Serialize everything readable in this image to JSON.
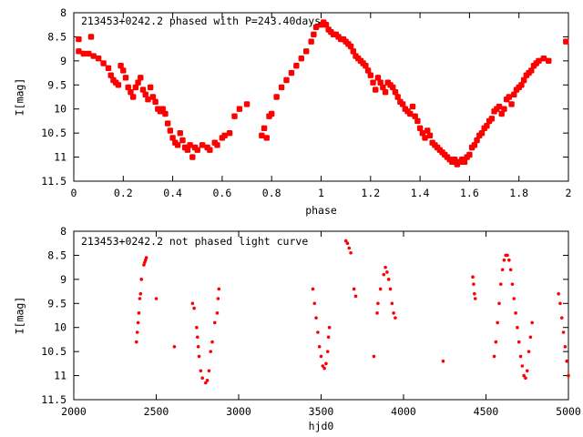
{
  "chart_data": [
    {
      "type": "scatter",
      "title": "213453+0242.2 phased with P=243.40days",
      "xlabel": "phase",
      "ylabel": "I[mag]",
      "xlim": [
        0,
        2
      ],
      "ylim": [
        11.5,
        8
      ],
      "y_inverted": true,
      "x_ticks": [
        "0",
        "0.2",
        "0.4",
        "0.6",
        "0.8",
        "1",
        "1.2",
        "1.4",
        "1.6",
        "1.8",
        "2"
      ],
      "y_ticks": [
        "8",
        "8.5",
        "9",
        "9.5",
        "10",
        "10.5",
        "11",
        "11.5"
      ],
      "marker": "filled-star",
      "marker_color": "#ff0000",
      "points": [
        [
          0.02,
          8.55
        ],
        [
          0.02,
          8.8
        ],
        [
          0.04,
          8.85
        ],
        [
          0.06,
          8.85
        ],
        [
          0.07,
          8.5
        ],
        [
          0.08,
          8.9
        ],
        [
          0.1,
          8.95
        ],
        [
          0.12,
          9.05
        ],
        [
          0.14,
          9.15
        ],
        [
          0.15,
          9.3
        ],
        [
          0.16,
          9.4
        ],
        [
          0.17,
          9.45
        ],
        [
          0.18,
          9.5
        ],
        [
          0.19,
          9.1
        ],
        [
          0.2,
          9.2
        ],
        [
          0.21,
          9.35
        ],
        [
          0.22,
          9.55
        ],
        [
          0.23,
          9.65
        ],
        [
          0.24,
          9.75
        ],
        [
          0.25,
          9.55
        ],
        [
          0.26,
          9.45
        ],
        [
          0.27,
          9.35
        ],
        [
          0.28,
          9.6
        ],
        [
          0.29,
          9.7
        ],
        [
          0.3,
          9.8
        ],
        [
          0.31,
          9.55
        ],
        [
          0.32,
          9.75
        ],
        [
          0.33,
          9.85
        ],
        [
          0.34,
          10.0
        ],
        [
          0.35,
          10.05
        ],
        [
          0.36,
          10.0
        ],
        [
          0.37,
          10.1
        ],
        [
          0.38,
          10.3
        ],
        [
          0.39,
          10.45
        ],
        [
          0.4,
          10.6
        ],
        [
          0.41,
          10.7
        ],
        [
          0.42,
          10.75
        ],
        [
          0.43,
          10.5
        ],
        [
          0.44,
          10.65
        ],
        [
          0.45,
          10.8
        ],
        [
          0.46,
          10.85
        ],
        [
          0.47,
          10.75
        ],
        [
          0.48,
          11.0
        ],
        [
          0.49,
          10.8
        ],
        [
          0.5,
          10.85
        ],
        [
          0.52,
          10.75
        ],
        [
          0.54,
          10.8
        ],
        [
          0.55,
          10.85
        ],
        [
          0.57,
          10.7
        ],
        [
          0.58,
          10.75
        ],
        [
          0.6,
          10.6
        ],
        [
          0.61,
          10.55
        ],
        [
          0.63,
          10.5
        ],
        [
          0.65,
          10.15
        ],
        [
          0.67,
          10.0
        ],
        [
          0.7,
          9.9
        ],
        [
          0.76,
          10.55
        ],
        [
          0.77,
          10.4
        ],
        [
          0.78,
          10.6
        ],
        [
          0.79,
          10.15
        ],
        [
          0.8,
          10.1
        ],
        [
          0.82,
          9.75
        ],
        [
          0.84,
          9.55
        ],
        [
          0.86,
          9.4
        ],
        [
          0.88,
          9.25
        ],
        [
          0.9,
          9.1
        ],
        [
          0.92,
          8.95
        ],
        [
          0.94,
          8.8
        ],
        [
          0.96,
          8.6
        ],
        [
          0.97,
          8.45
        ],
        [
          0.98,
          8.3
        ],
        [
          1.0,
          8.25
        ],
        [
          1.01,
          8.2
        ],
        [
          1.02,
          8.25
        ],
        [
          1.03,
          8.35
        ],
        [
          1.04,
          8.4
        ],
        [
          1.05,
          8.45
        ],
        [
          1.06,
          8.45
        ],
        [
          1.07,
          8.5
        ],
        [
          1.08,
          8.55
        ],
        [
          1.09,
          8.55
        ],
        [
          1.1,
          8.6
        ],
        [
          1.11,
          8.65
        ],
        [
          1.12,
          8.7
        ],
        [
          1.13,
          8.8
        ],
        [
          1.14,
          8.9
        ],
        [
          1.15,
          8.95
        ],
        [
          1.16,
          9.0
        ],
        [
          1.17,
          9.05
        ],
        [
          1.18,
          9.1
        ],
        [
          1.19,
          9.2
        ],
        [
          1.2,
          9.3
        ],
        [
          1.21,
          9.45
        ],
        [
          1.22,
          9.6
        ],
        [
          1.23,
          9.35
        ],
        [
          1.24,
          9.45
        ],
        [
          1.25,
          9.55
        ],
        [
          1.26,
          9.65
        ],
        [
          1.27,
          9.45
        ],
        [
          1.28,
          9.5
        ],
        [
          1.29,
          9.55
        ],
        [
          1.3,
          9.65
        ],
        [
          1.31,
          9.75
        ],
        [
          1.32,
          9.85
        ],
        [
          1.33,
          9.9
        ],
        [
          1.34,
          10.0
        ],
        [
          1.35,
          10.05
        ],
        [
          1.36,
          10.1
        ],
        [
          1.37,
          9.95
        ],
        [
          1.38,
          10.15
        ],
        [
          1.39,
          10.25
        ],
        [
          1.4,
          10.4
        ],
        [
          1.41,
          10.5
        ],
        [
          1.42,
          10.6
        ],
        [
          1.43,
          10.45
        ],
        [
          1.44,
          10.55
        ],
        [
          1.45,
          10.7
        ],
        [
          1.46,
          10.75
        ],
        [
          1.47,
          10.8
        ],
        [
          1.48,
          10.85
        ],
        [
          1.49,
          10.9
        ],
        [
          1.5,
          10.95
        ],
        [
          1.51,
          11.0
        ],
        [
          1.52,
          11.05
        ],
        [
          1.53,
          11.1
        ],
        [
          1.54,
          11.05
        ],
        [
          1.55,
          11.15
        ],
        [
          1.56,
          11.1
        ],
        [
          1.57,
          11.05
        ],
        [
          1.58,
          11.1
        ],
        [
          1.59,
          11.0
        ],
        [
          1.6,
          10.95
        ],
        [
          1.61,
          10.8
        ],
        [
          1.62,
          10.75
        ],
        [
          1.63,
          10.65
        ],
        [
          1.64,
          10.55
        ],
        [
          1.65,
          10.5
        ],
        [
          1.66,
          10.4
        ],
        [
          1.67,
          10.35
        ],
        [
          1.68,
          10.25
        ],
        [
          1.69,
          10.2
        ],
        [
          1.7,
          10.05
        ],
        [
          1.71,
          10.0
        ],
        [
          1.72,
          9.95
        ],
        [
          1.73,
          10.1
        ],
        [
          1.74,
          10.0
        ],
        [
          1.75,
          9.8
        ],
        [
          1.76,
          9.75
        ],
        [
          1.77,
          9.9
        ],
        [
          1.78,
          9.7
        ],
        [
          1.79,
          9.6
        ],
        [
          1.8,
          9.55
        ],
        [
          1.81,
          9.5
        ],
        [
          1.82,
          9.4
        ],
        [
          1.83,
          9.3
        ],
        [
          1.84,
          9.25
        ],
        [
          1.85,
          9.2
        ],
        [
          1.86,
          9.1
        ],
        [
          1.87,
          9.05
        ],
        [
          1.88,
          9.0
        ],
        [
          1.9,
          8.95
        ],
        [
          1.92,
          9.0
        ],
        [
          1.99,
          8.6
        ]
      ]
    },
    {
      "type": "scatter",
      "title": "213453+0242.2 not phased light curve",
      "xlabel": "hjd0",
      "ylabel": "I[mag]",
      "xlim": [
        2000,
        5000
      ],
      "ylim": [
        11.5,
        8
      ],
      "y_inverted": true,
      "x_ticks": [
        "2000",
        "2500",
        "3000",
        "3500",
        "4000",
        "4500",
        "5000"
      ],
      "y_ticks": [
        "8",
        "8.5",
        "9",
        "9.5",
        "10",
        "10.5",
        "11",
        "11.5"
      ],
      "marker": "dot",
      "marker_color": "#ff0000",
      "points": [
        [
          2380,
          10.3
        ],
        [
          2385,
          10.1
        ],
        [
          2390,
          9.9
        ],
        [
          2395,
          9.7
        ],
        [
          2400,
          9.4
        ],
        [
          2405,
          9.3
        ],
        [
          2410,
          9.0
        ],
        [
          2425,
          8.7
        ],
        [
          2430,
          8.65
        ],
        [
          2435,
          8.6
        ],
        [
          2440,
          8.55
        ],
        [
          2500,
          9.4
        ],
        [
          2610,
          10.4
        ],
        [
          2720,
          9.5
        ],
        [
          2730,
          9.6
        ],
        [
          2745,
          10.0
        ],
        [
          2750,
          10.2
        ],
        [
          2755,
          10.4
        ],
        [
          2760,
          10.6
        ],
        [
          2770,
          10.9
        ],
        [
          2780,
          11.05
        ],
        [
          2800,
          11.15
        ],
        [
          2810,
          11.1
        ],
        [
          2820,
          10.9
        ],
        [
          2830,
          10.5
        ],
        [
          2840,
          10.3
        ],
        [
          2855,
          9.9
        ],
        [
          2870,
          9.7
        ],
        [
          2875,
          9.4
        ],
        [
          2880,
          9.2
        ],
        [
          3450,
          9.2
        ],
        [
          3460,
          9.5
        ],
        [
          3470,
          9.8
        ],
        [
          3480,
          10.1
        ],
        [
          3490,
          10.4
        ],
        [
          3500,
          10.6
        ],
        [
          3510,
          10.8
        ],
        [
          3520,
          10.85
        ],
        [
          3530,
          10.75
        ],
        [
          3540,
          10.5
        ],
        [
          3545,
          10.2
        ],
        [
          3550,
          10.0
        ],
        [
          3650,
          8.2
        ],
        [
          3660,
          8.25
        ],
        [
          3670,
          8.35
        ],
        [
          3680,
          8.45
        ],
        [
          3700,
          9.2
        ],
        [
          3710,
          9.35
        ],
        [
          3820,
          10.6
        ],
        [
          3840,
          9.7
        ],
        [
          3845,
          9.5
        ],
        [
          3860,
          9.2
        ],
        [
          3880,
          8.9
        ],
        [
          3890,
          8.75
        ],
        [
          3900,
          8.85
        ],
        [
          3910,
          9.0
        ],
        [
          3920,
          9.2
        ],
        [
          3930,
          9.5
        ],
        [
          3940,
          9.7
        ],
        [
          3950,
          9.8
        ],
        [
          4240,
          10.7
        ],
        [
          4420,
          8.95
        ],
        [
          4425,
          9.1
        ],
        [
          4430,
          9.3
        ],
        [
          4435,
          9.4
        ],
        [
          4550,
          10.6
        ],
        [
          4560,
          10.3
        ],
        [
          4570,
          9.9
        ],
        [
          4580,
          9.5
        ],
        [
          4590,
          9.1
        ],
        [
          4600,
          8.8
        ],
        [
          4610,
          8.6
        ],
        [
          4620,
          8.5
        ],
        [
          4630,
          8.5
        ],
        [
          4640,
          8.6
        ],
        [
          4650,
          8.8
        ],
        [
          4660,
          9.1
        ],
        [
          4670,
          9.4
        ],
        [
          4680,
          9.7
        ],
        [
          4690,
          10.0
        ],
        [
          4700,
          10.3
        ],
        [
          4710,
          10.6
        ],
        [
          4720,
          10.8
        ],
        [
          4730,
          11.0
        ],
        [
          4740,
          11.05
        ],
        [
          4750,
          10.9
        ],
        [
          4760,
          10.5
        ],
        [
          4770,
          10.2
        ],
        [
          4780,
          9.9
        ],
        [
          4940,
          9.3
        ],
        [
          4950,
          9.5
        ],
        [
          4960,
          9.8
        ],
        [
          4970,
          10.1
        ],
        [
          4980,
          10.4
        ],
        [
          4990,
          10.7
        ],
        [
          5000,
          11.0
        ]
      ]
    }
  ]
}
